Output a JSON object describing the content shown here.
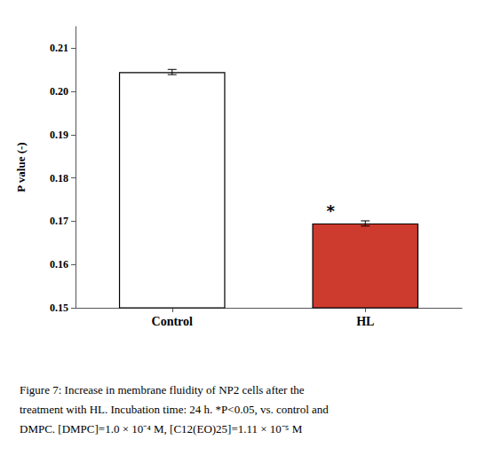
{
  "chart_data": {
    "type": "bar",
    "categories": [
      "Control",
      "HL"
    ],
    "values": [
      0.2045,
      0.1695
    ],
    "errors": [
      0.0006,
      0.0006
    ],
    "colors": [
      "#ffffff",
      "#cd3b2e"
    ],
    "y_label": "P value (-)",
    "ylim": [
      0.15,
      0.215
    ],
    "yticks": [
      0.15,
      0.16,
      0.17,
      0.18,
      0.19,
      {
        "value": 0.2,
        "label": "0.20"
      },
      0.21
    ],
    "grid": false,
    "annotations": [
      {
        "text": "*",
        "category": "HL"
      }
    ],
    "caption": [
      "Figure 7: Increase in membrane fluidity of NP2 cells after the",
      "treatment with HL. Incubation time: 24 h. *P<0.05, vs. control and",
      "DMPC. [DMPC]=1.0 × 10⁻⁴ M, [C12(EO)25]=1.11 × 10⁻⁵ M"
    ]
  }
}
